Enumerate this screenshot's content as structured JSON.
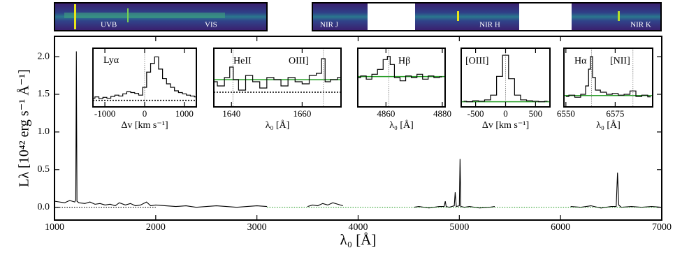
{
  "chart_data": [
    {
      "type": "line",
      "xlabel": "λ₀ [Å]",
      "ylabel": "Lλ [10⁴² erg s⁻¹ Å⁻¹]",
      "xlim": [
        1000,
        7000
      ],
      "ylim": [
        -0.17,
        2.27
      ],
      "xticks": [
        1000,
        2000,
        3000,
        4000,
        5000,
        6000,
        7000
      ],
      "yticks": [
        {
          "value": 0,
          "label": "0.0"
        },
        {
          "value": 0.5,
          "label": "0.5"
        },
        {
          "value": 1,
          "label": "1.0"
        },
        {
          "value": 1.5,
          "label": "1.5"
        },
        {
          "value": 2,
          "label": "2.0"
        }
      ],
      "x": [
        1000,
        1050,
        1100,
        1150,
        1200,
        1210,
        1216,
        1222,
        1240,
        1300,
        1350,
        1400,
        1450,
        1500,
        1550,
        1600,
        1640,
        1700,
        1750,
        1800,
        1850,
        1909,
        1950,
        2000,
        2100,
        2200,
        2300,
        2400,
        2500,
        2600,
        2700,
        2800,
        2900,
        3000,
        3100,
        3300,
        3500,
        3550,
        3600,
        3650,
        3700,
        3750,
        3800,
        3850,
        4200,
        4550,
        4600,
        4700,
        4800,
        4850,
        4861,
        4870,
        4900,
        4950,
        4959,
        4970,
        5000,
        5007,
        5015,
        5050,
        5100,
        5200,
        5300,
        5350,
        5700,
        6100,
        6200,
        6300,
        6400,
        6500,
        6550,
        6563,
        6575,
        6600,
        6700,
        6800,
        6900,
        7000
      ],
      "series": [
        {
          "color": "#000000",
          "values": [
            0.08,
            0.07,
            0.06,
            0.09,
            0.07,
            0.1,
            2.07,
            0.08,
            0.06,
            0.05,
            0.07,
            0.04,
            0.05,
            0.03,
            0.04,
            0.02,
            0.06,
            0.03,
            0.05,
            0.02,
            0.03,
            0.07,
            0.02,
            0.03,
            0.02,
            0.01,
            0.02,
            0.0,
            0.01,
            0.02,
            0.01,
            0.0,
            0.01,
            0.02,
            0.01,
            null,
            0.01,
            0.03,
            0.02,
            0.05,
            0.03,
            0.06,
            0.04,
            0.02,
            null,
            0.0,
            0.01,
            -0.01,
            0.01,
            0.01,
            0.08,
            0.01,
            0.0,
            0.02,
            0.2,
            0.01,
            0.02,
            0.64,
            0.01,
            0.0,
            0.01,
            -0.01,
            0.0,
            0.01,
            null,
            0.01,
            0.0,
            0.02,
            -0.01,
            0.01,
            0.01,
            0.46,
            0.03,
            0.0,
            0.01,
            0.0,
            0.01,
            0.0
          ]
        },
        {
          "color": "#000000",
          "style": "dotted",
          "values": [
            0,
            0,
            0,
            0,
            0,
            0,
            0,
            0,
            0,
            0,
            0,
            0,
            0,
            0,
            0,
            0,
            0,
            0,
            0,
            0,
            0,
            0,
            0,
            0,
            null,
            null,
            null,
            null,
            null,
            null,
            null,
            null,
            null,
            null,
            null,
            null,
            null,
            null,
            null,
            null,
            null,
            null,
            null,
            null,
            null,
            null,
            null,
            null,
            null,
            null,
            null,
            null,
            null,
            null,
            null,
            null,
            null,
            null,
            null,
            null,
            null,
            null,
            null,
            null,
            null,
            null,
            null,
            null,
            null,
            null,
            null,
            null,
            null,
            null,
            null,
            null,
            null,
            null
          ]
        },
        {
          "color": "#2ca02c",
          "style": "dotted",
          "values": [
            null,
            null,
            null,
            null,
            null,
            null,
            null,
            null,
            null,
            null,
            null,
            null,
            null,
            null,
            null,
            null,
            null,
            null,
            null,
            null,
            null,
            null,
            null,
            null,
            null,
            null,
            null,
            null,
            null,
            null,
            null,
            null,
            null,
            null,
            0,
            0,
            0,
            0,
            0,
            0,
            0,
            0,
            0,
            0,
            0,
            0,
            0,
            0,
            0,
            0,
            0,
            0,
            0,
            0,
            0,
            0,
            0,
            0,
            0,
            0,
            0,
            0,
            0,
            0,
            0,
            0,
            0,
            0,
            0,
            0,
            0,
            0,
            0,
            0,
            0,
            0,
            0,
            0
          ]
        }
      ]
    },
    {
      "type": "line",
      "step": true,
      "xlabel": "Δv [km s⁻¹]",
      "annotations": [
        "Lyα"
      ],
      "xlim": [
        -1300,
        1300
      ],
      "ylim": [
        -0.15,
        1.2
      ],
      "xticks": [
        -1000,
        0,
        1000
      ],
      "x": [
        -1300,
        -1200,
        -1100,
        -1000,
        -900,
        -800,
        -700,
        -600,
        -500,
        -400,
        -300,
        -200,
        -100,
        0,
        100,
        200,
        300,
        400,
        500,
        600,
        700,
        800,
        900,
        1000,
        1100,
        1200,
        1300
      ],
      "series": [
        {
          "color": "#000000",
          "values": [
            0.05,
            0.08,
            0.04,
            0.07,
            0.05,
            0.09,
            0.12,
            0.1,
            0.15,
            0.2,
            0.18,
            0.16,
            0.12,
            0.3,
            0.65,
            0.85,
            1.0,
            0.72,
            0.5,
            0.38,
            0.3,
            0.22,
            0.18,
            0.15,
            0.12,
            0.1,
            0.08
          ]
        }
      ],
      "hlines": [
        {
          "y": 0,
          "color": "#000000",
          "style": "dotted"
        }
      ],
      "vlines": [
        {
          "x": 0
        }
      ]
    },
    {
      "type": "line",
      "step": true,
      "xlabel": "λ₀ [Å]",
      "annotations": [
        "HeII",
        "OIII]"
      ],
      "xlim": [
        1635,
        1671
      ],
      "ylim": [
        -0.2,
        1.2
      ],
      "xticks": [
        1640,
        1660
      ],
      "x": [
        1635,
        1637,
        1639,
        1640,
        1641,
        1643,
        1645,
        1647,
        1649,
        1651,
        1653,
        1655,
        1657,
        1659,
        1661,
        1663,
        1665,
        1666,
        1667,
        1669,
        1671
      ],
      "series": [
        {
          "color": "#000000",
          "values": [
            0.4,
            0.3,
            0.5,
            0.75,
            0.45,
            0.2,
            0.55,
            0.4,
            0.25,
            0.5,
            0.45,
            0.3,
            0.5,
            0.4,
            0.35,
            0.55,
            0.6,
            0.95,
            0.4,
            0.45,
            0.5
          ]
        }
      ],
      "hlines": [
        {
          "y": 0.45,
          "color": "#2ca02c"
        },
        {
          "y": 0.15,
          "color": "#000000",
          "style": "dotted"
        }
      ],
      "vlines": [
        {
          "x": 1640.4
        },
        {
          "x": 1666
        }
      ]
    },
    {
      "type": "line",
      "step": true,
      "xlabel": "λ₀ [Å]",
      "annotations": [
        "Hβ"
      ],
      "xlim": [
        4850,
        4881
      ],
      "ylim": [
        -0.6,
        1.2
      ],
      "xticks": [
        4860,
        4880
      ],
      "x": [
        4850,
        4852,
        4854,
        4856,
        4858,
        4860,
        4861,
        4862,
        4864,
        4866,
        4868,
        4870,
        4872,
        4874,
        4876,
        4878,
        4880
      ],
      "series": [
        {
          "color": "#000000",
          "values": [
            0.3,
            0.35,
            0.25,
            0.4,
            0.55,
            0.85,
            0.95,
            0.7,
            0.3,
            0.2,
            0.35,
            0.3,
            0.4,
            0.25,
            0.35,
            0.3,
            0.32
          ]
        }
      ],
      "hlines": [
        {
          "y": 0.33,
          "color": "#2ca02c"
        }
      ],
      "vlines": [
        {
          "x": 4861
        }
      ]
    },
    {
      "type": "line",
      "step": true,
      "xlabel": "Δv [km s⁻¹]",
      "annotations": [
        "[OIII]"
      ],
      "xlim": [
        -740,
        740
      ],
      "ylim": [
        -0.1,
        1.15
      ],
      "xticks": [
        -500,
        0,
        500
      ],
      "x": [
        -700,
        -600,
        -500,
        -400,
        -300,
        -200,
        -100,
        0,
        100,
        200,
        300,
        400,
        500,
        600,
        700
      ],
      "series": [
        {
          "color": "#000000",
          "values": [
            0.02,
            0.01,
            0.03,
            0.02,
            0.05,
            0.15,
            0.55,
            1.0,
            0.5,
            0.15,
            0.05,
            0.03,
            0.02,
            0.01,
            0.02
          ]
        }
      ],
      "hlines": [
        {
          "y": 0.01,
          "color": "#2ca02c"
        }
      ],
      "vlines": [
        {
          "x": 0
        }
      ]
    },
    {
      "type": "line",
      "step": true,
      "xlabel": "λ₀ [Å]",
      "annotations": [
        "Hα",
        "[NII]"
      ],
      "xlim": [
        6549,
        6594
      ],
      "ylim": [
        -0.2,
        1.2
      ],
      "xticks": [
        6550,
        6575
      ],
      "x": [
        6550,
        6553,
        6556,
        6559,
        6561,
        6562,
        6563,
        6564,
        6566,
        6569,
        6572,
        6575,
        6578,
        6581,
        6584,
        6587,
        6590,
        6593
      ],
      "series": [
        {
          "color": "#000000",
          "values": [
            0.05,
            0.08,
            0.03,
            0.1,
            0.3,
            0.7,
            1.0,
            0.5,
            0.2,
            0.15,
            0.1,
            0.12,
            0.08,
            0.1,
            0.18,
            0.05,
            0.08,
            0.04
          ]
        }
      ],
      "hlines": [
        {
          "y": 0.07,
          "color": "#2ca02c"
        }
      ],
      "vlines": [
        {
          "x": 6563
        },
        {
          "x": 6584
        }
      ]
    }
  ],
  "panels_2d": [
    "UVB",
    "VIS",
    "NIR J",
    "NIR H",
    "NIR K"
  ]
}
